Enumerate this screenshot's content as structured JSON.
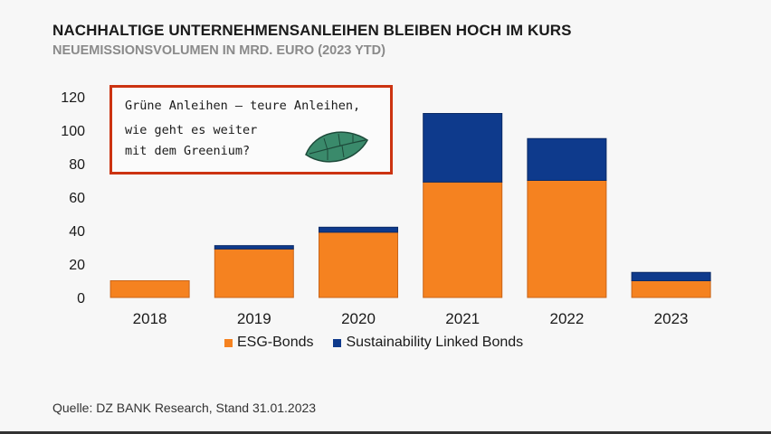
{
  "title": "NACHHALTIGE UNTERNEHMENSANLEIHEN BLEIBEN HOCH IM KURS",
  "subtitle": "NEUEMISSIONSVOLUMEN IN MRD. EURO (2023 YTD)",
  "callout": {
    "line1": "Grüne Anleihen – teure Anleihen,",
    "line2": "wie geht es weiter",
    "line3": "mit dem Greenium?",
    "icon": "leaf-icon"
  },
  "source": "Quelle: DZ BANK Research, Stand 31.01.2023",
  "colors": {
    "esg": "#f58220",
    "sll": "#0e3a8c",
    "callout_border": "#cc3311",
    "leaf": "#3a8a6b"
  },
  "chart_data": {
    "type": "bar",
    "stacked": true,
    "categories": [
      "2018",
      "2019",
      "2020",
      "2021",
      "2022",
      "2023"
    ],
    "series": [
      {
        "name": "ESG-Bonds",
        "values": [
          10,
          29,
          39,
          69,
          70,
          10
        ]
      },
      {
        "name": "Sustainability Linked Bonds",
        "values": [
          0,
          2,
          3,
          41,
          25,
          5
        ]
      }
    ],
    "yticks": [
      "0",
      "20",
      "40",
      "60",
      "80",
      "100",
      "120"
    ],
    "ylim": [
      0,
      120
    ],
    "legend_position": "bottom"
  }
}
